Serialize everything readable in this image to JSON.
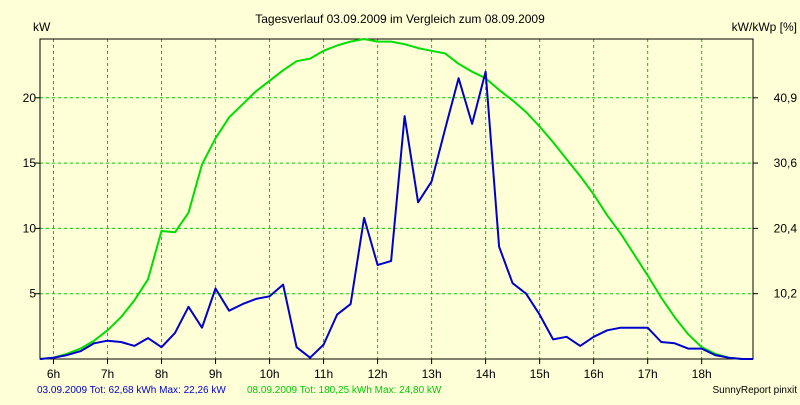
{
  "chart_data": {
    "type": "line",
    "title": "Tagesverlauf 03.09.2009 im Vergleich zum 08.09.2009",
    "y_left_label": "kW",
    "y_right_label": "kW/kWp [%]",
    "y_left_ticks": [
      "5",
      "10",
      "15",
      "20"
    ],
    "y_right_ticks": [
      "10,2",
      "20,4",
      "30,6",
      "40,9"
    ],
    "x_ticks": [
      "6h",
      "7h",
      "8h",
      "9h",
      "10h",
      "11h",
      "12h",
      "13h",
      "14h",
      "15h",
      "16h",
      "17h",
      "18h"
    ],
    "xlim": [
      5.75,
      18.95
    ],
    "ylim": [
      0,
      24.5
    ],
    "grid": true,
    "grid_color": "#00cc00",
    "series": [
      {
        "name": "03.09.2009",
        "color": "#0000cc",
        "x": [
          5.75,
          6.0,
          6.25,
          6.5,
          6.75,
          7.0,
          7.25,
          7.5,
          7.75,
          8.0,
          8.25,
          8.5,
          8.75,
          9.0,
          9.25,
          9.5,
          9.75,
          10.0,
          10.25,
          10.5,
          10.75,
          11.0,
          11.25,
          11.5,
          11.75,
          12.0,
          12.25,
          12.5,
          12.75,
          13.0,
          13.25,
          13.5,
          13.75,
          14.0,
          14.25,
          14.5,
          14.75,
          15.0,
          15.25,
          15.5,
          15.75,
          16.0,
          16.25,
          16.5,
          16.75,
          17.0,
          17.25,
          17.5,
          17.75,
          18.0,
          18.25,
          18.5,
          18.75,
          18.95
        ],
        "y": [
          0.0,
          0.1,
          0.3,
          0.6,
          1.2,
          1.4,
          1.3,
          1.0,
          1.6,
          0.9,
          2.0,
          4.0,
          2.4,
          5.4,
          3.7,
          4.2,
          4.6,
          4.8,
          5.7,
          0.9,
          0.1,
          1.1,
          3.4,
          4.2,
          10.8,
          7.2,
          7.5,
          18.6,
          12.0,
          13.6,
          17.6,
          21.5,
          18.0,
          22.0,
          8.6,
          5.8,
          5.0,
          3.4,
          1.5,
          1.7,
          1.0,
          1.7,
          2.2,
          2.4,
          2.4,
          2.4,
          1.3,
          1.2,
          0.8,
          0.8,
          0.3,
          0.1,
          0.0,
          0.0
        ]
      },
      {
        "name": "08.09.2009",
        "color": "#00dd00",
        "x": [
          5.75,
          6.0,
          6.25,
          6.5,
          6.75,
          7.0,
          7.25,
          7.5,
          7.75,
          8.0,
          8.25,
          8.5,
          8.75,
          9.0,
          9.25,
          9.5,
          9.75,
          10.0,
          10.25,
          10.5,
          10.75,
          11.0,
          11.25,
          11.5,
          11.75,
          12.0,
          12.25,
          12.5,
          12.75,
          13.0,
          13.25,
          13.5,
          13.75,
          14.0,
          14.25,
          14.5,
          14.75,
          15.0,
          15.25,
          15.5,
          15.75,
          16.0,
          16.25,
          16.5,
          16.75,
          17.0,
          17.25,
          17.5,
          17.75,
          18.0,
          18.25,
          18.5,
          18.75,
          18.95
        ],
        "y": [
          0.0,
          0.1,
          0.4,
          0.8,
          1.4,
          2.2,
          3.2,
          4.5,
          6.1,
          9.8,
          9.7,
          11.2,
          14.9,
          16.9,
          18.5,
          19.5,
          20.5,
          21.3,
          22.1,
          22.8,
          23.0,
          23.6,
          24.0,
          24.3,
          24.5,
          24.3,
          24.3,
          24.1,
          23.8,
          23.6,
          23.4,
          22.6,
          22.0,
          21.5,
          20.6,
          19.8,
          18.9,
          17.8,
          16.6,
          15.3,
          14.0,
          12.6,
          11.0,
          9.6,
          8.0,
          6.4,
          4.7,
          3.2,
          1.9,
          0.9,
          0.4,
          0.1,
          0.0,
          0.0
        ]
      }
    ],
    "footer": {
      "series1_text": "03.09.2009 Tot: 62,68 kWh Max: 22,26 kW",
      "series2_text": "08.09.2009 Tot: 180,25 kWh Max: 24,80 kW",
      "brand_text": "SunnyReport pinxit"
    }
  }
}
